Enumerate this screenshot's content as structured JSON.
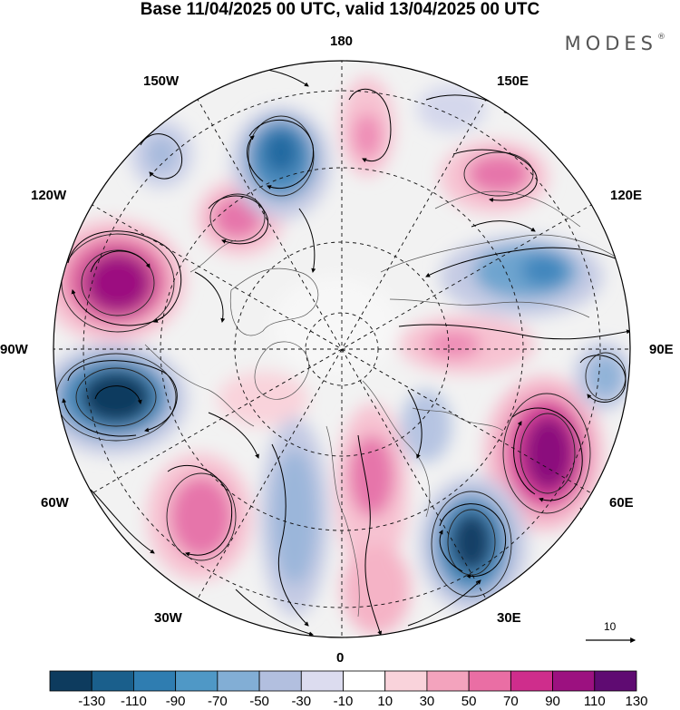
{
  "title": "Base 11/04/2025 00 UTC, valid 13/04/2025 00 UTC",
  "brand": "MODES",
  "brand_mark": "®",
  "longitude_labels": {
    "top": "180",
    "top_right": "150E",
    "right_upper": "120E",
    "right": "90E",
    "right_lower": "60E",
    "bottom_right": "30E",
    "bottom": "0",
    "bottom_left": "30W",
    "left_lower": "60W",
    "left": "90W",
    "left_upper": "120W",
    "top_left": "150W"
  },
  "reference_vector": "10",
  "colorbar": {
    "labels": [
      "-130",
      "-110",
      "-90",
      "-70",
      "-50",
      "-30",
      "-10",
      "10",
      "30",
      "50",
      "70",
      "90",
      "110",
      "130"
    ],
    "colors": [
      "#0d3b5e",
      "#1a5f8c",
      "#2f7db1",
      "#4f98c6",
      "#82aed5",
      "#b2bfdf",
      "#dcdcef",
      "#ffffff",
      "#f9d3db",
      "#f3a3bd",
      "#ea6ea4",
      "#cf2d8c",
      "#9c1180",
      "#5f0b72"
    ]
  },
  "anomaly_cells": [
    {
      "lon_label": "120W",
      "sign": "positive",
      "level": 130
    },
    {
      "lon_label": "90W",
      "sign": "negative",
      "level": -130
    },
    {
      "lon_label": "60E",
      "sign": "positive",
      "level": 110
    },
    {
      "lon_label": "30E",
      "sign": "negative",
      "level": -110
    },
    {
      "lon_label": "150W",
      "sign": "negative",
      "level": -90
    },
    {
      "lon_label": "120E",
      "sign": "negative",
      "level": -70
    },
    {
      "lon_label": "60W",
      "sign": "positive",
      "level": 70
    },
    {
      "lon_label": "150E",
      "sign": "positive",
      "level": 70
    }
  ]
}
